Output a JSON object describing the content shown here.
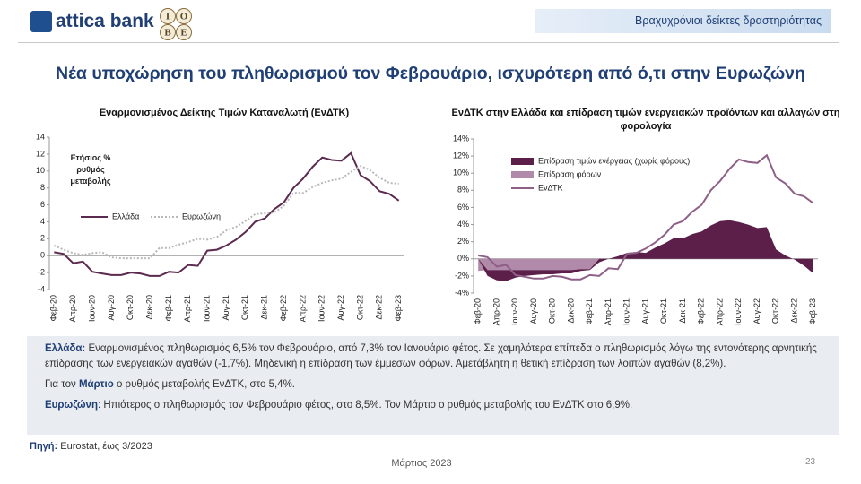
{
  "header": {
    "brand": "attica bank",
    "logo_letters": [
      "Ι",
      "Ο",
      "Β",
      "Ε"
    ],
    "section": "Βραχυχρόνιοι δείκτες δραστηριότητας"
  },
  "title": "Νέα υποχώρηση του πληθωρισμού τον Φεβρουάριο, ισχυρότερη από ό,τι στην Ευρωζώνη",
  "chart_data": [
    {
      "type": "line",
      "title": "Εναρμονισμένος Δείκτης Τιμών Καταναλωτή (ΕνΔΤΚ)",
      "annotation": "Ετήσιος % ρυθμός μεταβολής",
      "categories": [
        "Φεβ-20",
        null,
        "Απρ-20",
        null,
        "Ιουν-20",
        null,
        "Αυγ-20",
        null,
        "Οκτ-20",
        null,
        "Δεκ-20",
        null,
        "Φεβ-21",
        null,
        "Απρ-21",
        null,
        "Ιουν-21",
        null,
        "Αυγ-21",
        null,
        "Οκτ-21",
        null,
        "Δεκ-21",
        null,
        "Φεβ-22",
        null,
        "Απρ-22",
        null,
        "Ιουν-22",
        null,
        "Αυγ-22",
        null,
        "Οκτ-22",
        null,
        "Δεκ-22",
        null,
        "Φεβ-23"
      ],
      "ylim": [
        -4,
        14
      ],
      "yticks": [
        -4,
        -2,
        0,
        2,
        4,
        6,
        8,
        10,
        12,
        14
      ],
      "series": [
        {
          "name": "Ελλάδα",
          "color": "#5b2a4e",
          "style": "solid",
          "values": [
            0.4,
            0.2,
            -0.9,
            -0.7,
            -1.9,
            -2.1,
            -2.3,
            -2.3,
            -2.0,
            -2.1,
            -2.4,
            -2.4,
            -1.9,
            -2.0,
            -1.1,
            -1.2,
            0.6,
            0.7,
            1.2,
            1.9,
            2.8,
            4.0,
            4.4,
            5.5,
            6.3,
            8.0,
            9.1,
            10.5,
            11.6,
            11.3,
            11.2,
            12.1,
            9.5,
            8.8,
            7.6,
            7.3,
            6.5
          ]
        },
        {
          "name": "Ευρωζώνη",
          "color": "#b8b8b8",
          "style": "dotted",
          "values": [
            1.2,
            0.7,
            0.3,
            0.1,
            0.3,
            0.4,
            -0.2,
            -0.3,
            -0.3,
            -0.3,
            -0.3,
            0.9,
            0.9,
            1.3,
            1.6,
            2.0,
            1.9,
            2.2,
            3.0,
            3.4,
            4.1,
            4.9,
            5.0,
            5.1,
            5.9,
            7.4,
            7.4,
            8.1,
            8.6,
            8.9,
            9.1,
            9.9,
            10.6,
            10.1,
            9.2,
            8.6,
            8.5
          ]
        }
      ]
    },
    {
      "type": "combo",
      "title": "ΕνΔΤΚ στην Ελλάδα και επίδραση τιμών ενεργειακών προϊόντων και αλλαγών στη φορολογία",
      "categories": [
        "Φεβ-20",
        null,
        "Απρ-20",
        null,
        "Ιουν-20",
        null,
        "Αυγ-20",
        null,
        "Οκτ-20",
        null,
        "Δεκ-20",
        null,
        "Φεβ-21",
        null,
        "Απρ-21",
        null,
        "Ιουν-21",
        null,
        "Αυγ-21",
        null,
        "Οκτ-21",
        null,
        "Δεκ-21",
        null,
        "Φεβ-22",
        null,
        "Απρ-22",
        null,
        "Ιουν-22",
        null,
        "Αυγ-22",
        null,
        "Οκτ-22",
        null,
        "Δεκ-22",
        null,
        "Φεβ-23"
      ],
      "ylim": [
        -4,
        14
      ],
      "yticks": [
        {
          "value": -4,
          "label": "-4%"
        },
        {
          "value": -2,
          "label": "-2%"
        },
        {
          "value": 0,
          "label": "0%"
        },
        {
          "value": 2,
          "label": "2%"
        },
        {
          "value": 4,
          "label": "4%"
        },
        {
          "value": 6,
          "label": "6%"
        },
        {
          "value": 8,
          "label": "8%"
        },
        {
          "value": 10,
          "label": "10%"
        },
        {
          "value": 12,
          "label": "12%"
        },
        {
          "value": 14,
          "label": "14%"
        }
      ],
      "series": [
        {
          "name": "Επίδραση τιμών ενέργειας (χωρίς φόρους)",
          "color": "#5b1f4a",
          "kind": "area",
          "values": [
            0,
            -0.7,
            -1.2,
            -1.3,
            -0.9,
            -0.7,
            -0.6,
            -0.5,
            -0.5,
            -0.4,
            -0.4,
            -0.2,
            -0.1,
            -0.4,
            0,
            0.3,
            0.7,
            0.8,
            0.7,
            1.3,
            1.8,
            2.4,
            2.4,
            2.9,
            3.2,
            3.9,
            4.4,
            4.5,
            4.3,
            4.0,
            3.6,
            3.7,
            1.1,
            0.4,
            -0.1,
            -0.8,
            -1.7
          ]
        },
        {
          "name": "Επίδραση φόρων",
          "color": "#b08aa8",
          "kind": "area",
          "values": [
            -1.4,
            -1.3,
            -1.3,
            -1.3,
            -1.3,
            -1.3,
            -1.3,
            -1.3,
            -1.3,
            -1.3,
            -1.3,
            -1.2,
            -1.2,
            0,
            0,
            0,
            0,
            0,
            0,
            0,
            0,
            0,
            0,
            0,
            0,
            0,
            0,
            0,
            0,
            0,
            0,
            0,
            0,
            0,
            0,
            0,
            0
          ]
        },
        {
          "name": "ΕνΔΤΚ",
          "color": "#8e6088",
          "kind": "line",
          "values": [
            0.4,
            0.2,
            -0.9,
            -0.7,
            -1.9,
            -2.1,
            -2.3,
            -2.3,
            -2.0,
            -2.1,
            -2.4,
            -2.4,
            -1.9,
            -2.0,
            -1.1,
            -1.2,
            0.6,
            0.7,
            1.2,
            1.9,
            2.8,
            4.0,
            4.4,
            5.5,
            6.3,
            8.0,
            9.1,
            10.5,
            11.6,
            11.3,
            11.2,
            12.1,
            9.5,
            8.8,
            7.6,
            7.3,
            6.5
          ]
        }
      ]
    }
  ],
  "notes": [
    {
      "runs": [
        {
          "text": "Ελλάδα:",
          "bold": true
        },
        {
          "text": " Εναρμονισμένος πληθωρισμός 6,5% τον Φεβρουάριο, από 7,3% τον Ιανουάριο φέτος. Σε χαμηλότερα επίπεδα ο πληθωρισμός λόγω της εντονότερης αρνητικής επίδρασης των ενεργειακών αγαθών (-1,7%). Μηδενική η επίδραση των έμμεσων φόρων. Αμετάβλητη η θετική επίδραση των λοιπών αγαθών (8,2%).",
          "bold": false
        }
      ]
    },
    {
      "runs": [
        {
          "text": "Για τον ",
          "bold": false
        },
        {
          "text": "Μάρτιο",
          "bold": true
        },
        {
          "text": " ο ρυθμός μεταβολής ΕνΔΤΚ, στο 5,4%.",
          "bold": false
        }
      ]
    },
    {
      "runs": [
        {
          "text": "Ευρωζώνη",
          "bold": true
        },
        {
          "text": ": Ηπιότερος ο πληθωρισμός τον Φεβρουάριο φέτος, στο 8,5%. Τον Μάρτιο ο ρυθμός μεταβολής του ΕνΔΤΚ στο 6,9%.",
          "bold": false
        }
      ]
    }
  ],
  "source": {
    "label": "Πηγή:",
    "text": "Eurostat, έως 3/2023"
  },
  "footer": {
    "date": "Μάρτιος 2023",
    "page": "23"
  }
}
